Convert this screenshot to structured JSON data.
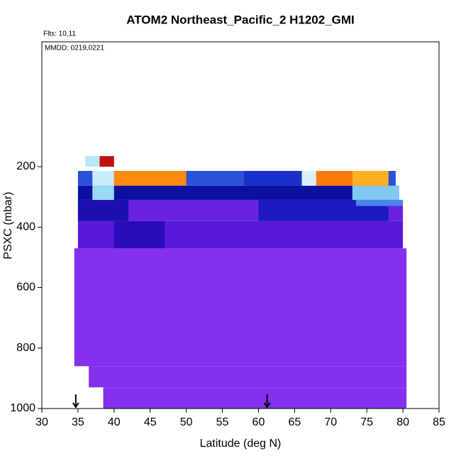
{
  "chart_data": {
    "type": "curtain",
    "title": "ATOM2 Northeast_Pacific_2 H1202_GMI",
    "subtitle": "Flts: 10,11",
    "annotation": "MMDD: 0219,0221",
    "xlabel": "Latitude (deg N)",
    "ylabel": "PSXC (mbar)",
    "xlim": [
      30,
      85
    ],
    "xticks": [
      30,
      35,
      40,
      45,
      50,
      55,
      60,
      65,
      70,
      75,
      80,
      85
    ],
    "ylim": [
      1000,
      -213
    ],
    "yticks": [
      200,
      400,
      600,
      800,
      1000
    ],
    "arrows": [
      34.7,
      61.2
    ],
    "regions": [
      {
        "lat": [
          34.5,
          80.5
        ],
        "p": [
          470,
          860
        ],
        "color": "#8430ee"
      },
      {
        "lat": [
          36.5,
          80.5
        ],
        "p": [
          860,
          930
        ],
        "color": "#8430ee"
      },
      {
        "lat": [
          38.5,
          80.5
        ],
        "p": [
          930,
          1000
        ],
        "color": "#8430ee"
      },
      {
        "lat": [
          79.5,
          80.5
        ],
        "p": [
          380,
          470
        ],
        "color": "#ffffff"
      },
      {
        "lat": [
          35,
          80
        ],
        "p": [
          380,
          470
        ],
        "color": "#5a18d8"
      },
      {
        "lat": [
          40,
          47
        ],
        "p": [
          380,
          470
        ],
        "color": "#2a0cb8"
      },
      {
        "lat": [
          35,
          80
        ],
        "p": [
          310,
          380
        ],
        "color": "#6a22e0"
      },
      {
        "lat": [
          35,
          42
        ],
        "p": [
          310,
          380
        ],
        "color": "#1a10b0"
      },
      {
        "lat": [
          60,
          78
        ],
        "p": [
          310,
          380
        ],
        "color": "#1c1ac0"
      },
      {
        "lat": [
          73.5,
          80
        ],
        "p": [
          310,
          330
        ],
        "color": "#4a84e8"
      },
      {
        "lat": [
          35,
          79.5
        ],
        "p": [
          263,
          310
        ],
        "color": "#0c10a0"
      },
      {
        "lat": [
          37,
          40
        ],
        "p": [
          263,
          310
        ],
        "color": "#9ad8f4"
      },
      {
        "lat": [
          73,
          79.5
        ],
        "p": [
          263,
          310
        ],
        "color": "#80c8f0"
      },
      {
        "lat": [
          35,
          79
        ],
        "p": [
          214,
          263
        ],
        "color": "#2a52d8"
      },
      {
        "lat": [
          37,
          40
        ],
        "p": [
          214,
          263
        ],
        "color": "#c8ecfa"
      },
      {
        "lat": [
          40,
          50
        ],
        "p": [
          214,
          263
        ],
        "color": "#ff8a10"
      },
      {
        "lat": [
          58,
          66
        ],
        "p": [
          214,
          263
        ],
        "color": "#1a30c8"
      },
      {
        "lat": [
          66,
          68
        ],
        "p": [
          214,
          263
        ],
        "color": "#d8f0fa"
      },
      {
        "lat": [
          68,
          73
        ],
        "p": [
          214,
          263
        ],
        "color": "#ff7a08"
      },
      {
        "lat": [
          73,
          78
        ],
        "p": [
          214,
          263
        ],
        "color": "#ffb020"
      },
      {
        "lat": [
          36,
          38
        ],
        "p": [
          165,
          200
        ],
        "color": "#b8e8f6"
      },
      {
        "lat": [
          38,
          40
        ],
        "p": [
          165,
          200
        ],
        "color": "#c01010"
      }
    ]
  }
}
